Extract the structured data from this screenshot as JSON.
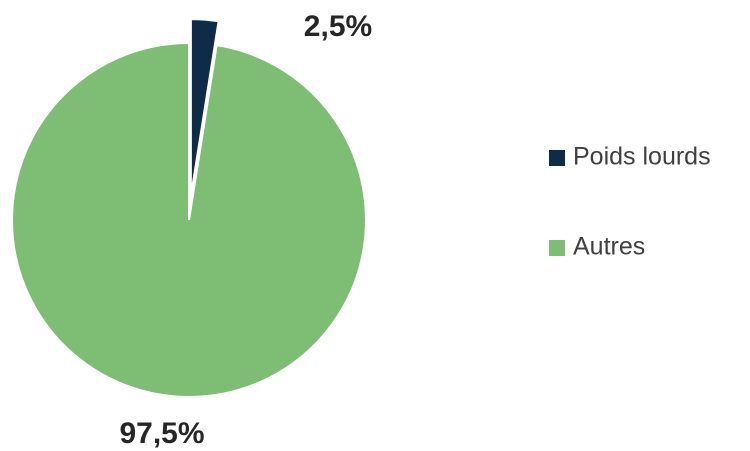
{
  "chart_data": {
    "type": "pie",
    "categories": [
      "Poids lourds",
      "Autres"
    ],
    "values": [
      2.5,
      97.5
    ],
    "value_labels": [
      "2,5%",
      "97,5%"
    ],
    "colors": [
      "#0e2b47",
      "#7dbe74"
    ],
    "legend": "right"
  }
}
